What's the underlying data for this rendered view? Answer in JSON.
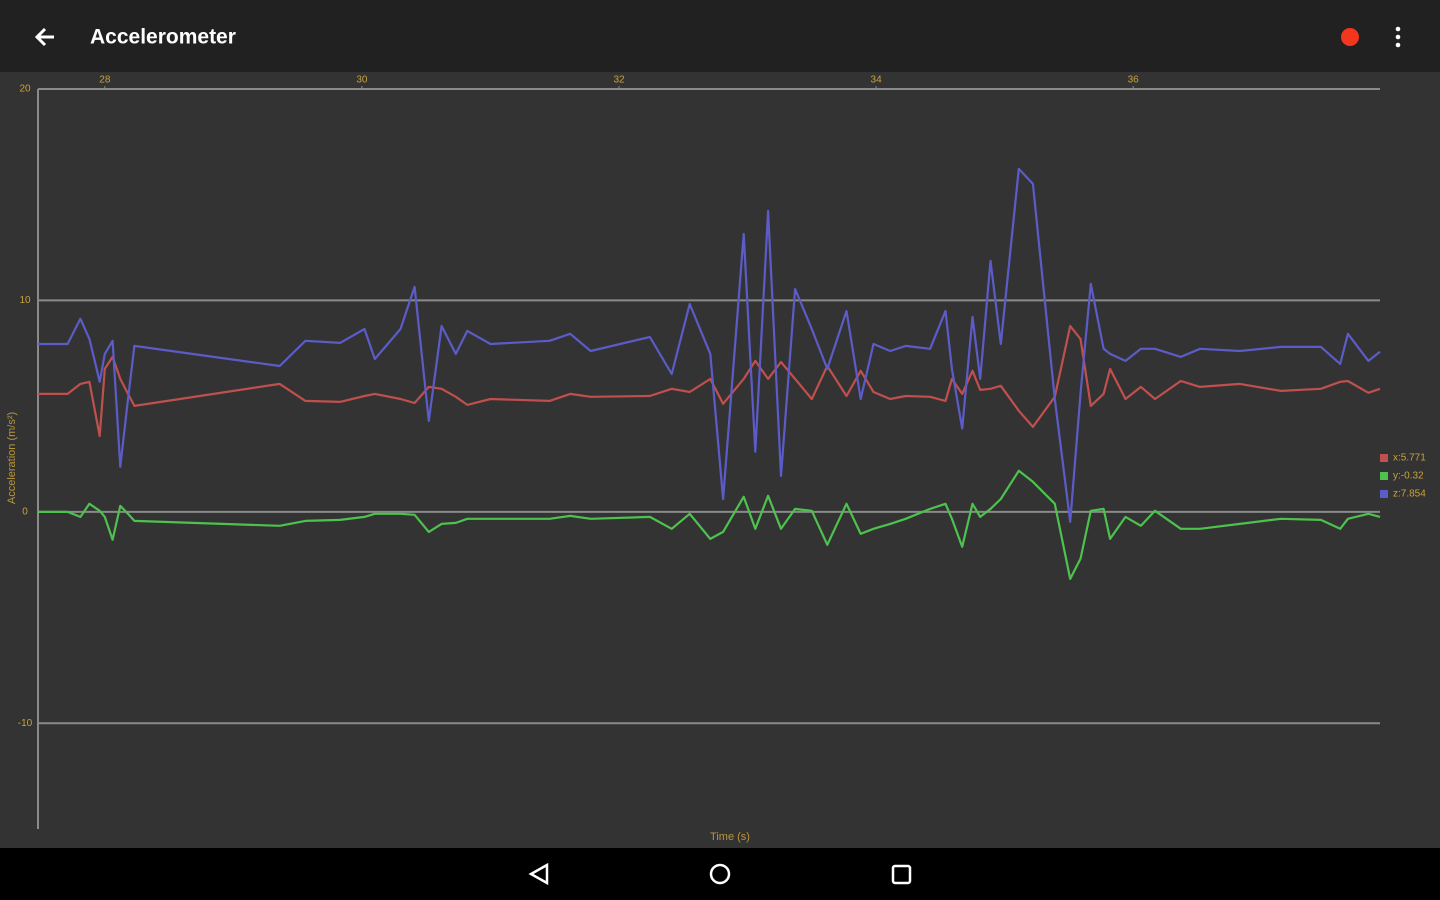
{
  "app_bar": {
    "title": "Accelerometer"
  },
  "chart_data": {
    "type": "line",
    "x_label": "Time (s)",
    "y_label": "Acceleration (m/s²)",
    "xlim": [
      27.48,
      37.92
    ],
    "xticks": [
      28,
      30,
      32,
      34,
      36
    ],
    "ylim": [
      -15,
      20
    ],
    "yticks": [
      20,
      10,
      0,
      -10
    ],
    "grid": true,
    "legend": "right",
    "x": [
      27.48,
      27.71,
      27.81,
      27.88,
      27.96,
      28.0,
      28.06,
      28.12,
      28.18,
      28.23,
      29.36,
      29.56,
      29.83,
      30.02,
      30.1,
      30.3,
      30.41,
      30.52,
      30.62,
      30.73,
      30.82,
      31.0,
      31.46,
      31.62,
      31.78,
      32.24,
      32.41,
      32.55,
      32.71,
      32.81,
      32.97,
      33.06,
      33.16,
      33.26,
      33.37,
      33.5,
      33.62,
      33.77,
      33.88,
      33.98,
      34.11,
      34.23,
      34.42,
      34.54,
      34.59,
      34.67,
      34.75,
      34.81,
      34.89,
      34.97,
      35.11,
      35.22,
      35.39,
      35.51,
      35.59,
      35.67,
      35.77,
      35.82,
      35.94,
      36.06,
      36.17,
      36.37,
      36.52,
      36.83,
      37.15,
      37.46,
      37.61,
      37.67,
      37.83,
      37.92
    ],
    "series": [
      {
        "name": "x:5.771",
        "color": "#c0504d",
        "values": [
          5.58,
          5.58,
          6.05,
          6.15,
          3.59,
          6.76,
          7.33,
          6.29,
          5.58,
          5.01,
          6.05,
          5.25,
          5.2,
          5.48,
          5.58,
          5.34,
          5.15,
          5.91,
          5.82,
          5.44,
          5.06,
          5.34,
          5.25,
          5.58,
          5.44,
          5.48,
          5.82,
          5.67,
          6.29,
          5.11,
          6.29,
          7.14,
          6.29,
          7.09,
          6.29,
          5.34,
          6.9,
          5.48,
          6.67,
          5.67,
          5.34,
          5.48,
          5.44,
          5.25,
          6.29,
          5.58,
          6.67,
          5.77,
          5.82,
          5.96,
          4.78,
          4.02,
          5.44,
          8.79,
          8.18,
          5.01,
          5.58,
          6.76,
          5.34,
          5.91,
          5.34,
          6.19,
          5.91,
          6.05,
          5.72,
          5.82,
          6.15,
          6.19,
          5.63,
          5.82
        ]
      },
      {
        "name": "y:-0.32",
        "color": "#4ec24e",
        "values": [
          0,
          0,
          -0.24,
          0.38,
          0.05,
          -0.24,
          -1.32,
          0.28,
          -0.09,
          -0.43,
          -0.66,
          -0.43,
          -0.38,
          -0.24,
          -0.09,
          -0.09,
          -0.14,
          -0.95,
          -0.57,
          -0.52,
          -0.33,
          -0.33,
          -0.33,
          -0.19,
          -0.33,
          -0.24,
          -0.8,
          -0.09,
          -1.28,
          -0.95,
          0.71,
          -0.8,
          0.76,
          -0.8,
          0.14,
          0.05,
          -1.56,
          0.38,
          -1.04,
          -0.8,
          -0.57,
          -0.33,
          0.14,
          0.38,
          -0.33,
          -1.65,
          0.38,
          -0.24,
          0.14,
          0.61,
          1.94,
          1.42,
          0.38,
          -3.17,
          -2.22,
          0.05,
          0.14,
          -1.28,
          -0.24,
          -0.66,
          0.05,
          -0.8,
          -0.8,
          -0.57,
          -0.33,
          -0.38,
          -0.8,
          -0.33,
          -0.09,
          -0.24
        ]
      },
      {
        "name": "z:7.854",
        "color": "#5c5cc8",
        "values": [
          7.94,
          7.94,
          9.13,
          8.18,
          6.15,
          7.47,
          8.09,
          2.13,
          5.34,
          7.85,
          6.9,
          8.09,
          7.99,
          8.65,
          7.23,
          8.65,
          10.64,
          4.3,
          8.79,
          7.47,
          8.56,
          7.94,
          8.09,
          8.42,
          7.61,
          8.27,
          6.52,
          9.83,
          7.47,
          0.61,
          13.14,
          2.84,
          14.23,
          1.7,
          10.54,
          8.65,
          6.76,
          9.5,
          5.34,
          7.94,
          7.61,
          7.85,
          7.71,
          9.5,
          6.76,
          3.94,
          9.22,
          6.29,
          11.87,
          7.94,
          16.22,
          15.51,
          5.34,
          -0.47,
          5.58,
          10.78,
          7.71,
          7.47,
          7.14,
          7.71,
          7.71,
          7.33,
          7.71,
          7.61,
          7.8,
          7.8,
          7.0,
          8.42,
          7.14,
          7.57
        ]
      }
    ]
  }
}
